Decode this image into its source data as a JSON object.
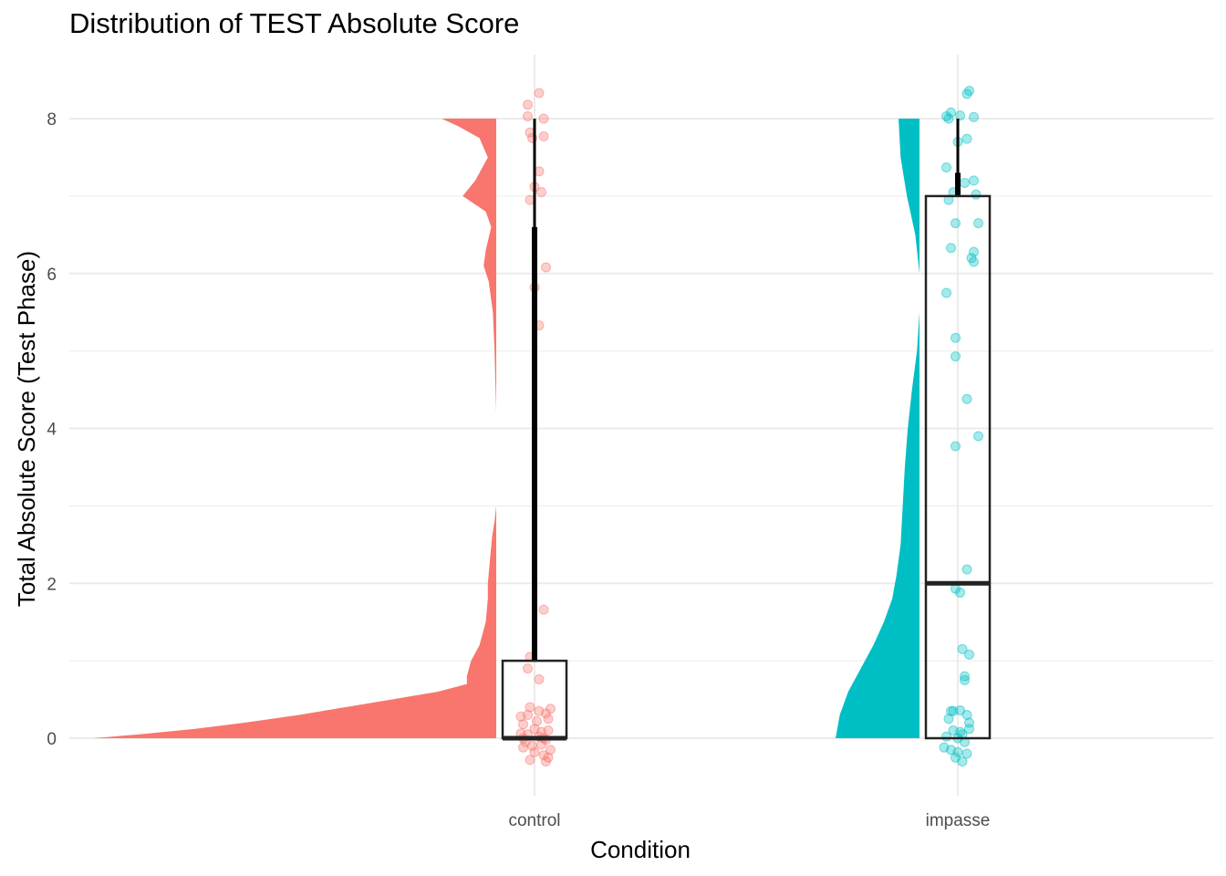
{
  "chart_data": {
    "type": "raincloud",
    "title": "Distribution of TEST Absolute Score",
    "xlabel": "Condition",
    "ylabel": "Total Absolute Score (Test Phase)",
    "categories": [
      "control",
      "impasse"
    ],
    "yticks": [
      0,
      2,
      4,
      6,
      8
    ],
    "ylim": [
      -0.8,
      8.8
    ],
    "grid": true,
    "legend": "none",
    "colors": {
      "control": "#F8766D",
      "impasse": "#00BFC4"
    },
    "series": [
      {
        "name": "control",
        "boxplot": {
          "min": 0,
          "q1": 0,
          "median": 0,
          "q3": 1,
          "max": 8,
          "whisker_upper_thick": 6.6
        },
        "density": [
          [
            0,
            0.96
          ],
          [
            0.05,
            0.85
          ],
          [
            0.12,
            0.72
          ],
          [
            0.2,
            0.6
          ],
          [
            0.3,
            0.47
          ],
          [
            0.4,
            0.36
          ],
          [
            0.5,
            0.25
          ],
          [
            0.6,
            0.14
          ],
          [
            0.7,
            0.07
          ],
          [
            0.8,
            0.07
          ],
          [
            0.9,
            0.065
          ],
          [
            1.0,
            0.06
          ],
          [
            1.1,
            0.05
          ],
          [
            1.2,
            0.04
          ],
          [
            1.5,
            0.025
          ],
          [
            1.8,
            0.02
          ],
          [
            2.0,
            0.02
          ],
          [
            2.3,
            0.015
          ],
          [
            2.6,
            0.01
          ],
          [
            2.8,
            0.004
          ],
          [
            3.0,
            0.0
          ],
          [
            4.2,
            0.0
          ],
          [
            4.6,
            0.002
          ],
          [
            5.0,
            0.004
          ],
          [
            5.5,
            0.008
          ],
          [
            5.9,
            0.018
          ],
          [
            6.1,
            0.03
          ],
          [
            6.3,
            0.025
          ],
          [
            6.6,
            0.012
          ],
          [
            6.8,
            0.025
          ],
          [
            7.0,
            0.08
          ],
          [
            7.2,
            0.05
          ],
          [
            7.5,
            0.02
          ],
          [
            7.75,
            0.04
          ],
          [
            7.9,
            0.09
          ],
          [
            8.0,
            0.13
          ]
        ],
        "points": [
          [
            0.02,
            0.02
          ],
          [
            0.05,
            -0.02
          ],
          [
            -0.03,
            0.05
          ],
          [
            0.03,
            -0.08
          ],
          [
            -0.05,
            -0.12
          ],
          [
            0.06,
            0.1
          ],
          [
            0.0,
            -0.18
          ],
          [
            0.04,
            -0.22
          ],
          [
            -0.02,
            -0.28
          ],
          [
            0.05,
            -0.3
          ],
          [
            -0.04,
            -0.05
          ],
          [
            0.07,
            -0.15
          ],
          [
            0.01,
            0.22
          ],
          [
            -0.06,
            0.28
          ],
          [
            0.05,
            0.32
          ],
          [
            0.02,
            0.35
          ],
          [
            -0.03,
            0.3
          ],
          [
            0.06,
            0.25
          ],
          [
            0.0,
            0.12
          ],
          [
            -0.05,
            0.18
          ],
          [
            0.03,
            0.08
          ],
          [
            -0.01,
            -0.1
          ],
          [
            0.04,
            0.0
          ],
          [
            -0.06,
            0.06
          ],
          [
            0.07,
            0.38
          ],
          [
            -0.02,
            0.4
          ],
          [
            0.02,
            0.76
          ],
          [
            -0.03,
            0.9
          ],
          [
            -0.02,
            1.05
          ],
          [
            0.04,
            1.66
          ],
          [
            0.02,
            5.33
          ],
          [
            0.0,
            5.82
          ],
          [
            0.05,
            6.08
          ],
          [
            -0.02,
            6.95
          ],
          [
            0.03,
            7.05
          ],
          [
            0.0,
            7.12
          ],
          [
            0.02,
            7.32
          ],
          [
            -0.01,
            7.75
          ],
          [
            -0.02,
            7.82
          ],
          [
            0.04,
            7.77
          ],
          [
            -0.03,
            8.03
          ],
          [
            0.04,
            8.0
          ],
          [
            -0.03,
            8.18
          ],
          [
            0.02,
            8.33
          ],
          [
            -0.05,
            0.0
          ],
          [
            0.06,
            -0.25
          ]
        ]
      },
      {
        "name": "impasse",
        "boxplot": {
          "min": 0,
          "q1": 0,
          "median": 2,
          "q3": 7,
          "max": 8,
          "whisker_upper_thick": 7.3
        },
        "density": [
          [
            0,
            0.2
          ],
          [
            0.3,
            0.19
          ],
          [
            0.6,
            0.17
          ],
          [
            0.9,
            0.14
          ],
          [
            1.2,
            0.11
          ],
          [
            1.5,
            0.085
          ],
          [
            1.8,
            0.065
          ],
          [
            2.1,
            0.055
          ],
          [
            2.5,
            0.045
          ],
          [
            3.0,
            0.04
          ],
          [
            3.5,
            0.035
          ],
          [
            4.0,
            0.028
          ],
          [
            4.5,
            0.018
          ],
          [
            5.0,
            0.006
          ],
          [
            5.5,
            0.0
          ],
          [
            6.0,
            0.0
          ],
          [
            6.5,
            0.01
          ],
          [
            7.0,
            0.03
          ],
          [
            7.5,
            0.045
          ],
          [
            8.0,
            0.05
          ]
        ],
        "points": [
          [
            0.01,
            0.36
          ],
          [
            -0.03,
            0.35
          ],
          [
            0.04,
            0.3
          ],
          [
            -0.04,
            0.25
          ],
          [
            0.05,
            0.2
          ],
          [
            -0.02,
            0.1
          ],
          [
            0.02,
            0.05
          ],
          [
            0.0,
            0.0
          ],
          [
            0.03,
            -0.05
          ],
          [
            -0.03,
            -0.15
          ],
          [
            0.04,
            -0.2
          ],
          [
            -0.01,
            -0.25
          ],
          [
            0.02,
            -0.3
          ],
          [
            -0.06,
            -0.12
          ],
          [
            0.0,
            -0.18
          ],
          [
            0.05,
            0.12
          ],
          [
            -0.05,
            0.02
          ],
          [
            0.01,
            0.08
          ],
          [
            -0.02,
            0.35
          ],
          [
            0.03,
            0.75
          ],
          [
            0.03,
            0.8
          ],
          [
            0.05,
            1.08
          ],
          [
            0.02,
            1.15
          ],
          [
            0.01,
            1.88
          ],
          [
            -0.01,
            1.93
          ],
          [
            0.04,
            2.18
          ],
          [
            0.09,
            3.9
          ],
          [
            -0.01,
            3.77
          ],
          [
            0.04,
            4.38
          ],
          [
            -0.01,
            4.93
          ],
          [
            -0.01,
            5.17
          ],
          [
            -0.05,
            5.75
          ],
          [
            0.07,
            6.15
          ],
          [
            0.06,
            6.2
          ],
          [
            0.07,
            6.28
          ],
          [
            -0.03,
            6.33
          ],
          [
            0.09,
            6.65
          ],
          [
            -0.01,
            6.65
          ],
          [
            -0.04,
            6.95
          ],
          [
            0.08,
            7.02
          ],
          [
            -0.02,
            7.05
          ],
          [
            0.03,
            7.17
          ],
          [
            0.07,
            7.2
          ],
          [
            -0.05,
            7.37
          ],
          [
            0.04,
            7.74
          ],
          [
            0.0,
            7.7
          ],
          [
            -0.05,
            8.03
          ],
          [
            0.07,
            8.02
          ],
          [
            -0.04,
            8.0
          ],
          [
            0.01,
            8.04
          ],
          [
            -0.03,
            8.08
          ],
          [
            0.04,
            8.32
          ],
          [
            0.05,
            8.36
          ]
        ]
      }
    ]
  }
}
